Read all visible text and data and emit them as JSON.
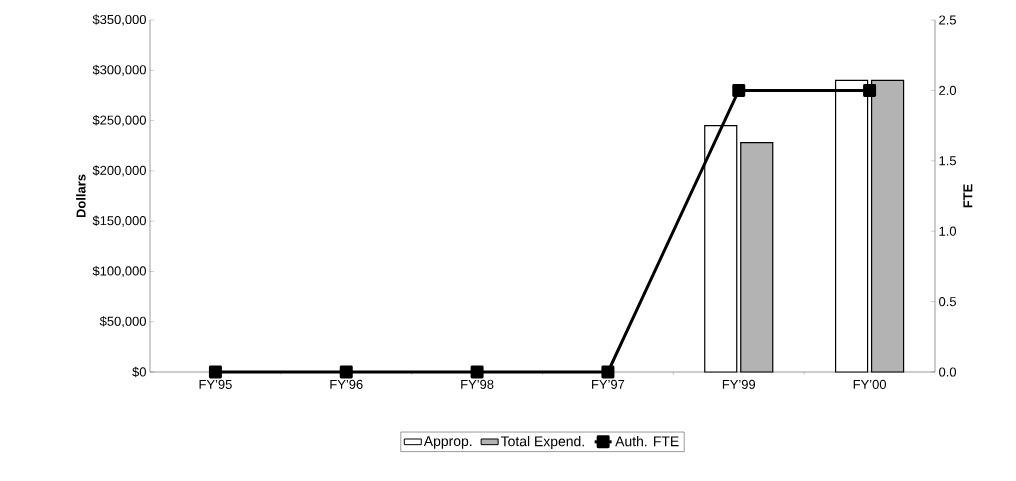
{
  "chart_data": {
    "type": "bar",
    "categories": [
      "FY’95",
      "FY’96",
      "FY’98",
      "FY’97",
      "FY’99",
      "FY’00"
    ],
    "ylabel": "Dollars",
    "y2label": "FTE",
    "ylim": [
      0,
      350000
    ],
    "yticks": [
      {
        "value": 0,
        "label": "$0"
      },
      {
        "value": 50000,
        "label": "$50,000"
      },
      {
        "value": 100000,
        "label": "$100,000"
      },
      {
        "value": 150000,
        "label": "$150,000"
      },
      {
        "value": 200000,
        "label": "$200,000"
      },
      {
        "value": 250000,
        "label": "$250,000"
      },
      {
        "value": 300000,
        "label": "$300,000"
      },
      {
        "value": 350000,
        "label": "$350,000"
      }
    ],
    "y2lim": [
      0,
      2.5
    ],
    "y2ticks": [
      {
        "value": 0,
        "label": "0.0"
      },
      {
        "value": 0.5,
        "label": "0.5"
      },
      {
        "value": 1,
        "label": "1.0"
      },
      {
        "value": 1.5,
        "label": "1.5"
      },
      {
        "value": 2,
        "label": "2.0"
      },
      {
        "value": 2.5,
        "label": "2.5"
      }
    ],
    "legend": "bottom",
    "marker": "square",
    "series": [
      {
        "name": "Approp.",
        "color": "#ffffff",
        "values": [
          null,
          null,
          null,
          null,
          245000,
          290000
        ]
      },
      {
        "name": "Total Expend.",
        "color": "#b3b3b3",
        "values": [
          null,
          null,
          null,
          null,
          228000,
          290000
        ]
      },
      {
        "name": "Auth. FTE",
        "type": "line",
        "axis": "y2",
        "color": "#000000",
        "values": [
          0,
          0,
          0,
          0,
          2,
          2
        ]
      }
    ]
  }
}
